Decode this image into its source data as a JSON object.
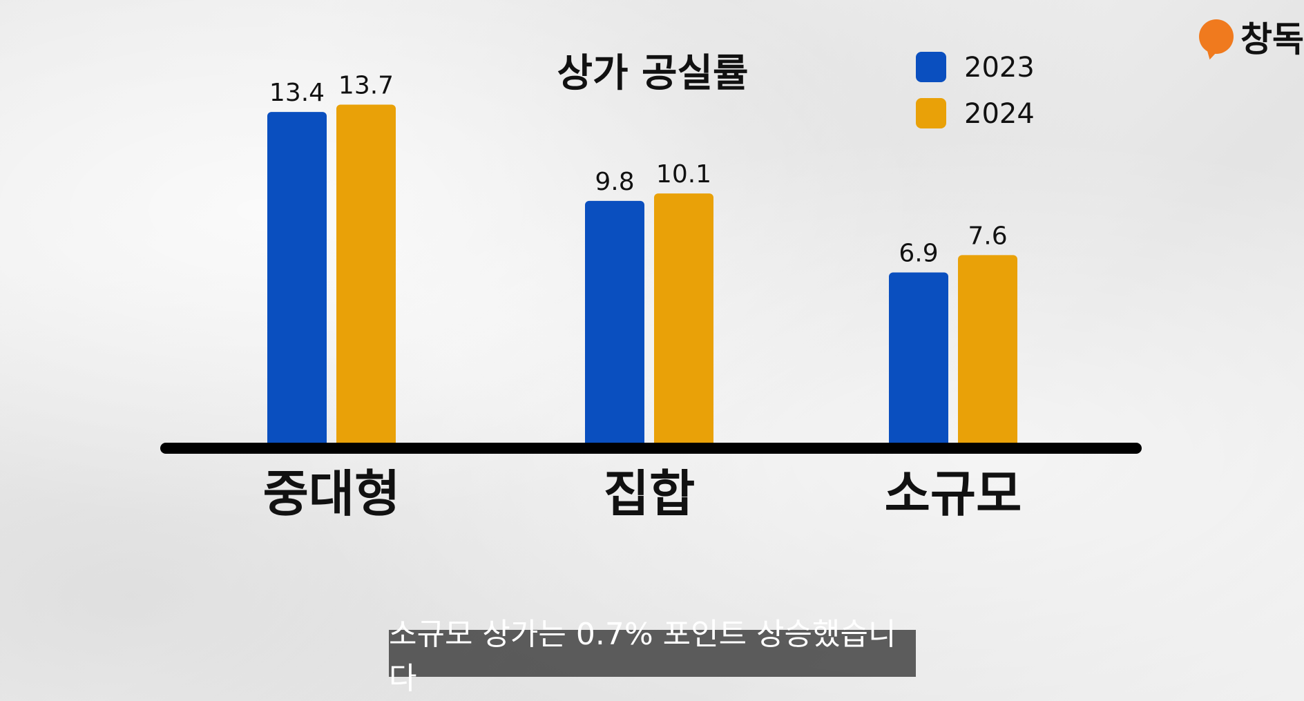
{
  "brand": {
    "logo_text": "창독",
    "logo_color": "#f07a1e"
  },
  "subtitle": "소규모 상가는 0.7% 포인트 상승했습니다",
  "chart_data": {
    "type": "bar",
    "title": "상가 공실률",
    "categories": [
      "중대형",
      "집합",
      "소규모"
    ],
    "series": [
      {
        "name": "2023",
        "color": "#0a4fbf",
        "values": [
          13.4,
          9.8,
          6.9
        ],
        "labels": [
          "13.4",
          "9.8",
          "6.9"
        ]
      },
      {
        "name": "2024",
        "color": "#e9a108",
        "values": [
          13.7,
          10.1,
          7.6
        ],
        "labels": [
          "13.7",
          "10.1",
          "7.6"
        ]
      }
    ],
    "ylim": [
      0,
      15
    ],
    "grid": false,
    "legend": "top-right",
    "xlabel": "",
    "ylabel": ""
  }
}
